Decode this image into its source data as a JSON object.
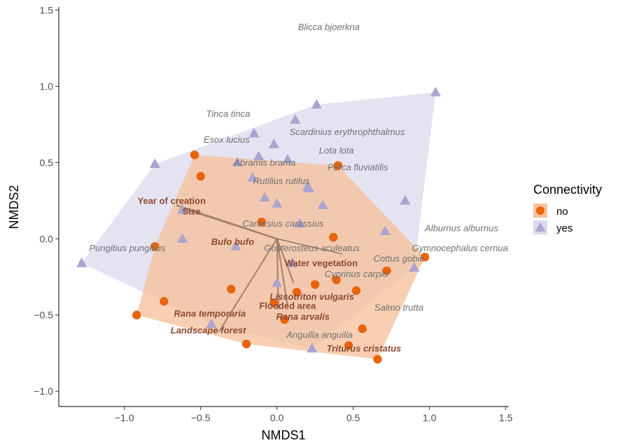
{
  "chart_data": {
    "type": "scatter",
    "xlabel": "NMDS1",
    "ylabel": "NMDS2",
    "xlim": [
      -1.43,
      1.52
    ],
    "ylim": [
      -1.1,
      1.52
    ],
    "x_ticks": [
      -1.0,
      -0.5,
      0.0,
      0.5,
      1.0,
      1.5
    ],
    "x_tick_labels": [
      "−1.0",
      "−0.5",
      "0.0",
      "0.5",
      "1.0",
      "1.5"
    ],
    "y_ticks": [
      -1.0,
      -0.5,
      0.0,
      0.5,
      1.0,
      1.5
    ],
    "y_tick_labels": [
      "−1.0",
      "−0.5",
      "0.0",
      "0.5",
      "1.0",
      "1.5"
    ],
    "grid": false,
    "legend": {
      "title": "Connectivity",
      "placement": "right",
      "entries": [
        {
          "label": "no",
          "marker": "circle",
          "color": "#e8640c",
          "fill": "#f6c29c"
        },
        {
          "label": "yes",
          "marker": "triangle",
          "color": "#aaa4d0",
          "fill": "#dcdaee"
        }
      ]
    },
    "series": [
      {
        "name": "no",
        "marker": "circle",
        "color": "#e8640c",
        "hull_fill": "#f6c29c",
        "points": [
          [
            -0.54,
            0.55
          ],
          [
            -0.5,
            0.41
          ],
          [
            -0.1,
            0.11
          ],
          [
            -0.8,
            -0.05
          ],
          [
            -0.92,
            -0.5
          ],
          [
            -0.74,
            -0.41
          ],
          [
            -0.3,
            -0.33
          ],
          [
            -0.2,
            -0.69
          ],
          [
            -0.02,
            -0.42
          ],
          [
            0.05,
            -0.53
          ],
          [
            0.13,
            -0.35
          ],
          [
            0.25,
            -0.3
          ],
          [
            0.37,
            0.01
          ],
          [
            0.39,
            -0.27
          ],
          [
            0.4,
            0.48
          ],
          [
            0.52,
            -0.34
          ],
          [
            0.56,
            -0.59
          ],
          [
            0.47,
            -0.7
          ],
          [
            0.66,
            -0.79
          ],
          [
            0.72,
            -0.21
          ],
          [
            0.97,
            -0.12
          ]
        ]
      },
      {
        "name": "yes",
        "marker": "triangle",
        "color": "#aaa4d0",
        "hull_fill": "#dcdaee",
        "points": [
          [
            -1.28,
            -0.16
          ],
          [
            -0.8,
            0.49
          ],
          [
            -0.62,
            0.19
          ],
          [
            -0.62,
            0.0
          ],
          [
            -0.27,
            -0.05
          ],
          [
            -0.43,
            -0.56
          ],
          [
            -0.26,
            0.5
          ],
          [
            -0.16,
            0.4
          ],
          [
            -0.15,
            0.69
          ],
          [
            -0.12,
            0.54
          ],
          [
            -0.08,
            0.27
          ],
          [
            -0.02,
            0.62
          ],
          [
            0.0,
            0.23
          ],
          [
            0.07,
            0.52
          ],
          [
            0.1,
            -0.16
          ],
          [
            0.15,
            0.1
          ],
          [
            0.2,
            0.34
          ],
          [
            0.21,
            0.33
          ],
          [
            0.12,
            0.78
          ],
          [
            0.26,
            0.88
          ],
          [
            0.3,
            0.22
          ],
          [
            0.0,
            -0.29
          ],
          [
            0.23,
            -0.72
          ],
          [
            0.71,
            0.05
          ],
          [
            0.84,
            0.25
          ],
          [
            0.9,
            -0.19
          ],
          [
            1.04,
            0.96
          ]
        ]
      }
    ],
    "species_labels": [
      {
        "text": "Blicca bjoerkna",
        "x": 0.34,
        "y": 1.39
      },
      {
        "text": "Tinca tinca",
        "x": -0.32,
        "y": 0.82
      },
      {
        "text": "Scardinius erythrophthalmus",
        "x": 0.46,
        "y": 0.7
      },
      {
        "text": "Esox lucius",
        "x": -0.33,
        "y": 0.65
      },
      {
        "text": "Lota lota",
        "x": 0.39,
        "y": 0.58
      },
      {
        "text": "Abramis brama",
        "x": -0.08,
        "y": 0.5
      },
      {
        "text": "Perca fluviatilis",
        "x": 0.53,
        "y": 0.47
      },
      {
        "text": "Rutilius rutilus",
        "x": 0.03,
        "y": 0.38
      },
      {
        "text": "Carassius carassius",
        "x": 0.04,
        "y": 0.1
      },
      {
        "text": "Alburnus alburnus",
        "x": 1.21,
        "y": 0.07
      },
      {
        "text": "Pungitius pungitius",
        "x": -0.98,
        "y": -0.06
      },
      {
        "text": "Gosterosteus aculeatus",
        "x": 0.23,
        "y": -0.06
      },
      {
        "text": "Gymnocephalus cernua",
        "x": 1.2,
        "y": -0.06
      },
      {
        "text": "Cottus gobio",
        "x": 0.8,
        "y": -0.13
      },
      {
        "text": "Cyprinus carpio",
        "x": 0.52,
        "y": -0.23
      },
      {
        "text": "Salmo trutta",
        "x": 0.8,
        "y": -0.45
      },
      {
        "text": "Anguilla anguilla",
        "x": 0.28,
        "y": -0.63
      }
    ],
    "vector_labels": [
      {
        "text": "Year of creation",
        "x": -0.69,
        "y": 0.25,
        "italic": false
      },
      {
        "text": "Size",
        "x": -0.56,
        "y": 0.18,
        "italic": false
      },
      {
        "text": "Bufo bufo",
        "x": -0.29,
        "y": -0.02,
        "italic": true
      },
      {
        "text": "Water vegetation",
        "x": 0.29,
        "y": -0.16,
        "italic": false
      },
      {
        "text": "Lissotriton vulgaris",
        "x": 0.23,
        "y": -0.38,
        "italic": true
      },
      {
        "text": "Flooded area",
        "x": 0.07,
        "y": -0.44,
        "italic": false
      },
      {
        "text": "Rana temporaria",
        "x": -0.44,
        "y": -0.49,
        "italic": true
      },
      {
        "text": "Rana arvalis",
        "x": 0.17,
        "y": -0.51,
        "italic": true
      },
      {
        "text": "Landscape forest",
        "x": -0.45,
        "y": -0.6,
        "italic": true
      },
      {
        "text": "Triturus cristatus",
        "x": 0.57,
        "y": -0.72,
        "italic": true
      }
    ],
    "vectors": [
      {
        "x": -0.66,
        "y": 0.22
      },
      {
        "x": -0.62,
        "y": 0.2
      },
      {
        "x": 0.01,
        "y": -0.46
      },
      {
        "x": 0.11,
        "y": -0.29
      },
      {
        "x": 0.07,
        "y": -0.44
      },
      {
        "x": -0.38,
        "y": -0.61
      },
      {
        "x": 0.43,
        "y": -0.1
      }
    ]
  }
}
